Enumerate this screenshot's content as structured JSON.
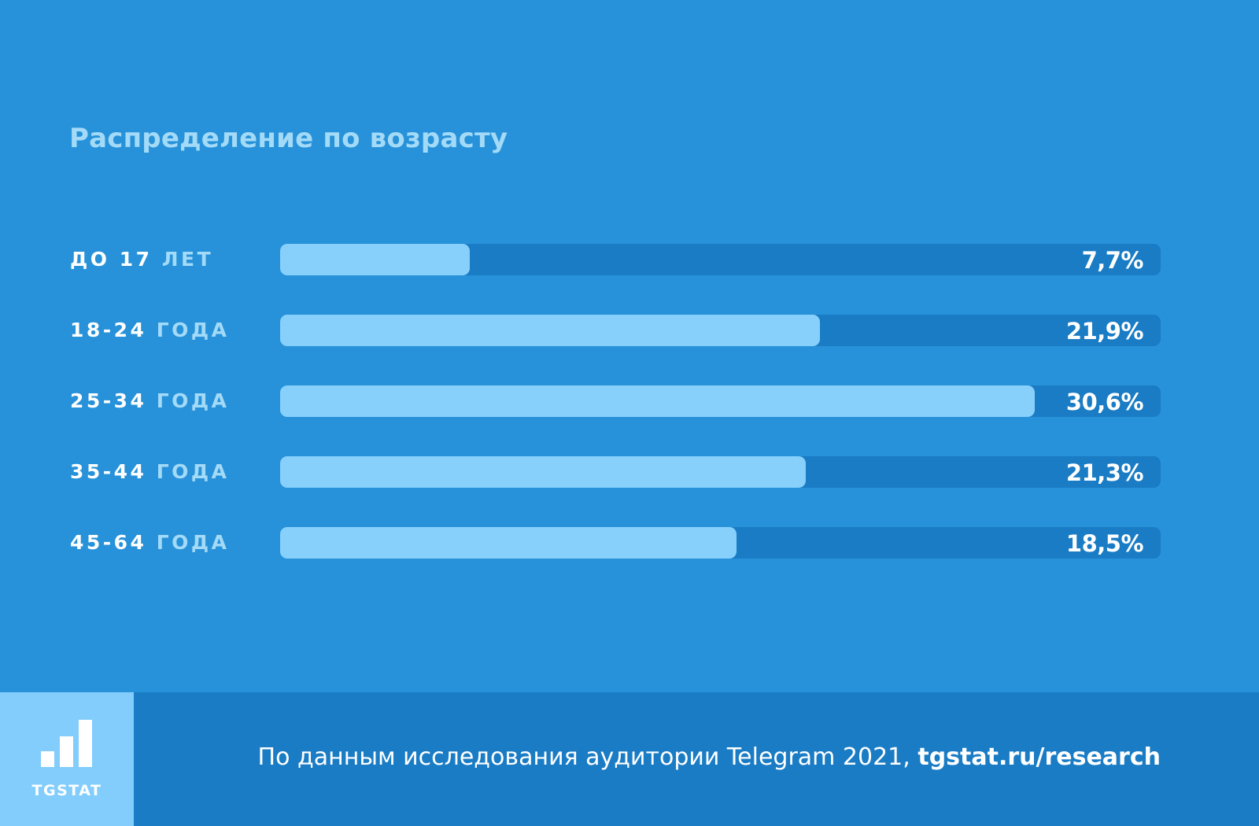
{
  "title": "Распределение по возрасту",
  "colors": {
    "background": "#2792d9",
    "track": "#1a7cc4",
    "fill": "#87d0fc",
    "title": "#a3daf7",
    "footer": "#1a7cc4",
    "logo_panel": "#82cdfc"
  },
  "rows": [
    {
      "num": "ДО 17",
      "unit": "ЛЕТ",
      "value": "7,7%"
    },
    {
      "num": "18-24",
      "unit": "ГОДА",
      "value": "21,9%"
    },
    {
      "num": "25-34",
      "unit": "ГОДА",
      "value": "30,6%"
    },
    {
      "num": "35-44",
      "unit": "ГОДА",
      "value": "21,3%"
    },
    {
      "num": "45-64",
      "unit": "ГОДА",
      "value": "18,5%"
    }
  ],
  "footer": {
    "logo_icon": "bar-chart-icon",
    "logo_text": "TGSTAT",
    "source_text": "По данным исследования аудитории Telegram 2021,",
    "source_link": "tgstat.ru/research"
  },
  "chart_data": {
    "type": "bar",
    "orientation": "horizontal",
    "title": "Распределение по возрасту",
    "categories": [
      "до 17 лет",
      "18-24 года",
      "25-34 года",
      "35-44 года",
      "45-64 года"
    ],
    "values": [
      7.7,
      21.9,
      30.6,
      21.3,
      18.5
    ],
    "unit": "%",
    "data_labels": [
      "7,7%",
      "21,9%",
      "30,6%",
      "21,3%",
      "18,5%"
    ],
    "xlim": [
      0,
      35.7
    ],
    "grid": false,
    "legend": null,
    "xlabel": "",
    "ylabel": "",
    "source": "По данным исследования аудитории Telegram 2021, tgstat.ru/research"
  }
}
